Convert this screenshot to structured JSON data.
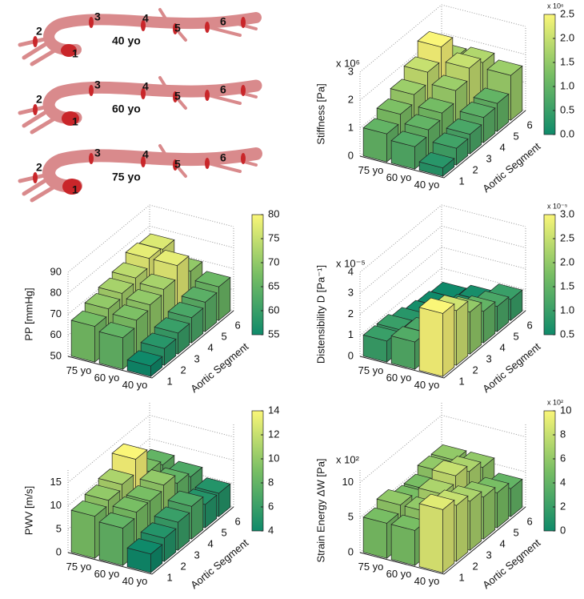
{
  "aorta_panel": {
    "rows": [
      "40 yo",
      "60 yo",
      "75 yo"
    ],
    "segment_labels": [
      "1",
      "2",
      "3",
      "4",
      "5",
      "6"
    ]
  },
  "chart_data": [
    {
      "type": "bar3d",
      "zlabel": "Stiffness [Pa]",
      "multiplier": "x 10⁶",
      "categories": [
        "75 yo",
        "60 yo",
        "40 yo"
      ],
      "segments": [
        "1",
        "2",
        "3",
        "4",
        "5",
        "6"
      ],
      "segment_label": "Aortic Segment",
      "values": [
        [
          1.0,
          1.3,
          1.6,
          2.0,
          2.5,
          1.7
        ],
        [
          0.8,
          1.0,
          1.2,
          1.6,
          2.0,
          1.8
        ],
        [
          0.3,
          0.6,
          0.7,
          0.9,
          1.0,
          1.6
        ]
      ],
      "zlim": [
        0,
        3
      ],
      "zticks": [
        0,
        1,
        2,
        3
      ],
      "colorbar": {
        "lim": [
          0,
          2.5
        ],
        "label": "x 10⁶",
        "ticks": [
          {
            "value": 0,
            "label": "0.0"
          },
          {
            "value": 0.5,
            "label": "0.5"
          },
          {
            "value": 1,
            "label": "1.0"
          },
          {
            "value": 1.5,
            "label": "1.5"
          },
          {
            "value": 2,
            "label": "2.0"
          },
          {
            "value": 2.5,
            "label": "2.5"
          }
        ]
      }
    },
    {
      "type": "bar3d",
      "zlabel": "PP [mmHg]",
      "categories": [
        "75 yo",
        "60 yo",
        "40 yo"
      ],
      "segments": [
        "1",
        "2",
        "3",
        "4",
        "5",
        "6"
      ],
      "segment_label": "Aortic Segment",
      "values": [
        [
          67,
          70,
          72,
          74,
          78,
          77
        ],
        [
          65,
          68,
          70,
          72,
          78,
          70
        ],
        [
          55,
          58,
          60,
          62,
          64,
          66
        ]
      ],
      "zlim": [
        50,
        90
      ],
      "zticks": [
        50,
        60,
        70,
        80,
        90
      ],
      "colorbar": {
        "lim": [
          55,
          80
        ],
        "ticks": [
          55,
          60,
          65,
          70,
          75,
          80
        ]
      }
    },
    {
      "type": "bar3d",
      "zlabel": "Distensibility D [Pa⁻¹]",
      "multiplier": "x 10⁻⁵",
      "categories": [
        "75 yo",
        "60 yo",
        "40 yo"
      ],
      "segments": [
        "1",
        "2",
        "3",
        "4",
        "5",
        "6"
      ],
      "segment_label": "Aortic Segment",
      "values": [
        [
          1.0,
          1.0,
          0.8,
          0.6,
          0.5,
          0.4
        ],
        [
          1.3,
          1.2,
          1.0,
          0.8,
          0.7,
          0.6
        ],
        [
          3.0,
          2.6,
          2.0,
          1.5,
          1.2,
          1.0
        ]
      ],
      "zlim": [
        0,
        4
      ],
      "zticks": [
        0,
        1,
        2,
        3,
        4
      ],
      "colorbar": {
        "lim": [
          0.5,
          3
        ],
        "label": "x 10⁻⁵",
        "ticks": [
          {
            "value": 0.5,
            "label": "0.5"
          },
          {
            "value": 1,
            "label": "1.0"
          },
          {
            "value": 1.5,
            "label": "1.5"
          },
          {
            "value": 2,
            "label": "2.0"
          },
          {
            "value": 2.5,
            "label": "2.5"
          },
          {
            "value": 3,
            "label": "3.0"
          }
        ]
      }
    },
    {
      "type": "bar3d",
      "zlabel": "PWV [m/s]",
      "categories": [
        "75 yo",
        "60 yo",
        "40 yo"
      ],
      "segments": [
        "1",
        "2",
        "3",
        "4",
        "5",
        "6"
      ],
      "segment_label": "Aortic Segment",
      "values": [
        [
          9,
          10,
          11,
          14,
          9,
          8
        ],
        [
          8,
          9,
          9,
          10,
          8,
          7
        ],
        [
          4,
          5,
          6,
          7,
          5,
          5
        ]
      ],
      "zlim": [
        0,
        18
      ],
      "zticks": [
        0,
        5,
        10,
        15
      ],
      "colorbar": {
        "lim": [
          4,
          14
        ],
        "ticks": [
          4,
          6,
          8,
          10,
          12,
          14
        ]
      }
    },
    {
      "type": "bar3d",
      "zlabel": "Strain Energy ΔW [Pa]",
      "multiplier": "x 10²",
      "categories": [
        "75 yo",
        "60 yo",
        "40 yo"
      ],
      "segments": [
        "1",
        "2",
        "3",
        "4",
        "5",
        "6"
      ],
      "segment_label": "Aortic Segment",
      "values": [
        [
          5,
          6,
          5,
          5,
          6,
          6
        ],
        [
          5,
          6,
          7,
          8,
          7,
          6
        ],
        [
          9,
          8,
          7,
          6,
          5,
          4
        ]
      ],
      "zlim": [
        0,
        12
      ],
      "zticks": [
        0,
        5,
        10
      ],
      "colorbar": {
        "lim": [
          0,
          10
        ],
        "label": "x 10²",
        "ticks": [
          0,
          2,
          4,
          6,
          8,
          10
        ]
      }
    }
  ]
}
